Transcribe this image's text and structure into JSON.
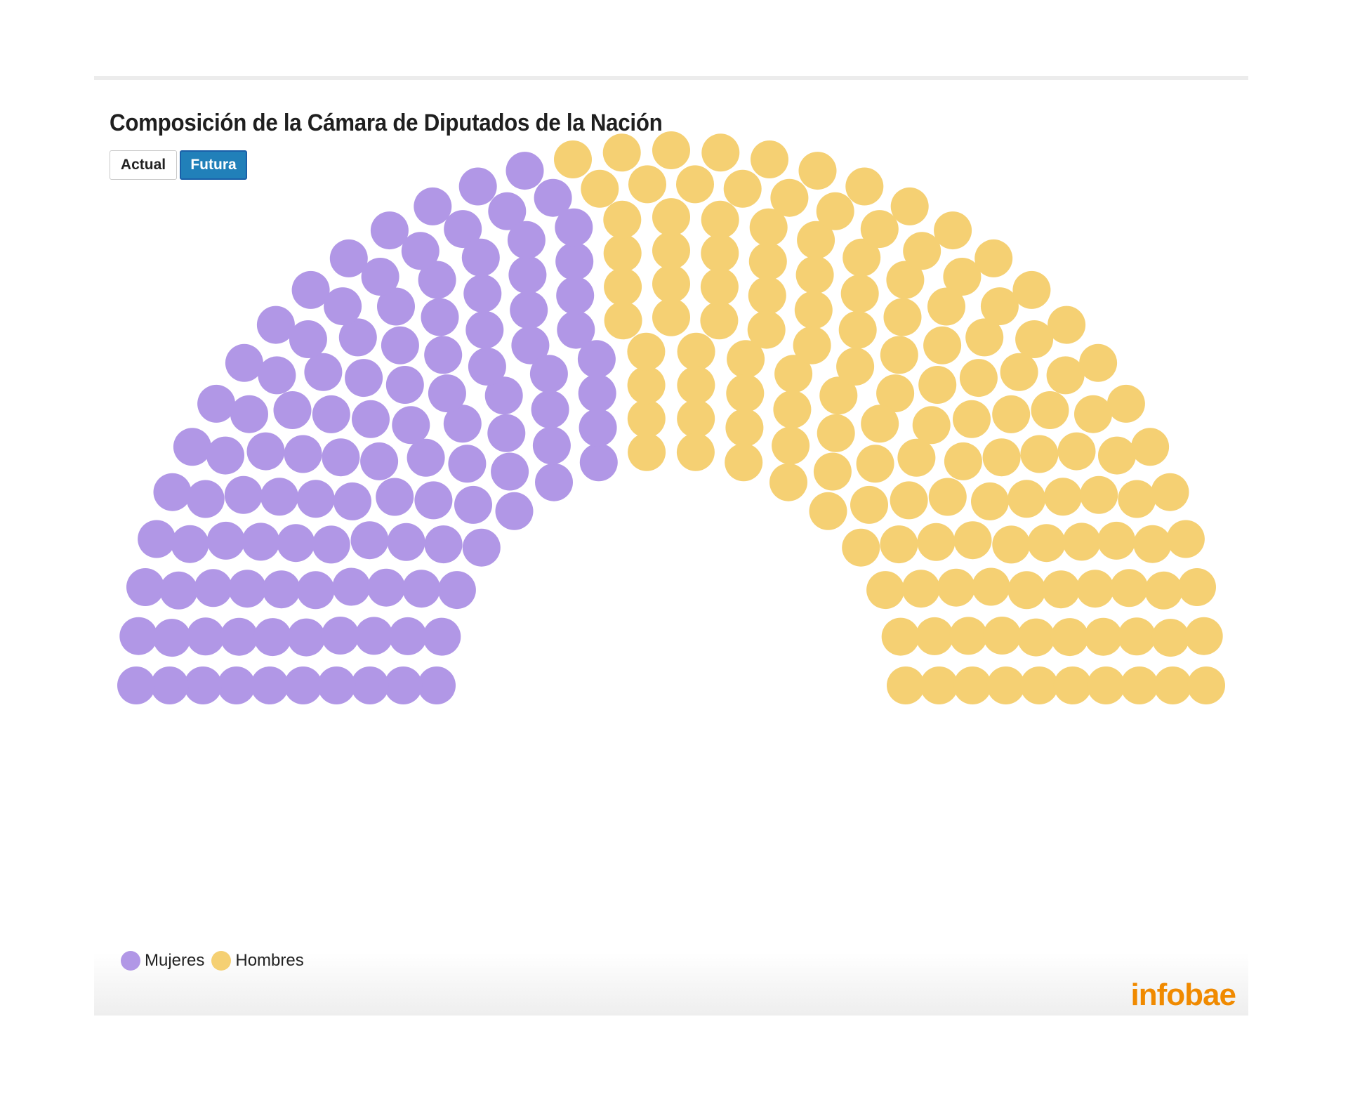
{
  "header": {
    "title": "Composición de la Cámara de Diputados de la Nación"
  },
  "tabs": [
    {
      "label": "Actual",
      "selected": false
    },
    {
      "label": "Futura",
      "selected": true
    }
  ],
  "chart_data": {
    "type": "parliament",
    "total_seats": 257,
    "rows": 10,
    "series": [
      {
        "name": "Mujeres",
        "value": 114,
        "color": "#b197e6"
      },
      {
        "name": "Hombres",
        "value": 143,
        "color": "#f5d073"
      }
    ],
    "legend_position": "bottom-left"
  },
  "legend": {
    "items": [
      {
        "label": "Mujeres",
        "color": "#b197e6"
      },
      {
        "label": "Hombres",
        "color": "#f5d073"
      }
    ]
  },
  "brand": {
    "logo_text": "infobae",
    "color": "#f08a00"
  }
}
